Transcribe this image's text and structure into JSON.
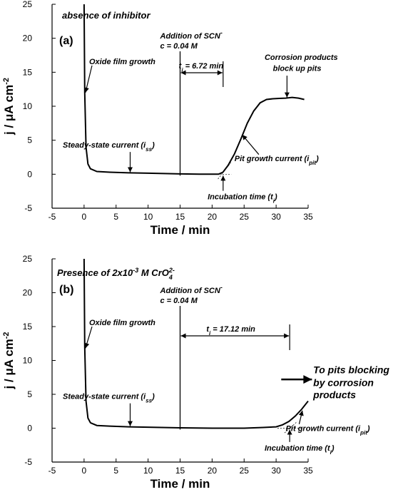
{
  "chart_data": [
    {
      "type": "line",
      "panel_label": "(a)",
      "header": "absence of inhibitor",
      "xlabel": "Time / min",
      "ylabel": "j / μA cm-2",
      "xlim": [
        -5,
        35
      ],
      "ylim": [
        -5,
        25
      ],
      "xticks": [
        "-5",
        "0",
        "5",
        "10",
        "15",
        "20",
        "25",
        "30",
        "35"
      ],
      "yticks": [
        "-5",
        "0",
        "5",
        "10",
        "15",
        "20",
        "25"
      ],
      "series": [
        {
          "x": [
            0,
            0.1,
            0.3,
            0.6,
            1,
            2,
            4,
            7,
            10,
            15,
            18,
            21,
            21.7,
            22.5,
            23.5,
            24.5,
            25.5,
            26.5,
            27.5,
            28.5,
            29.5,
            30.5,
            31.5,
            32.5,
            33.5,
            34.4
          ],
          "y": [
            25,
            12,
            4,
            1.5,
            0.8,
            0.4,
            0.3,
            0.2,
            0.15,
            0.05,
            0,
            0,
            0.3,
            1.3,
            3,
            5.2,
            7.5,
            9.3,
            10.5,
            11,
            11.1,
            11.15,
            11.2,
            11.3,
            11.2,
            11
          ]
        }
      ],
      "annotations": {
        "oxide": "Oxide film growth",
        "steady_main": "Steady-state current (i",
        "steady_sub": "ss",
        "steady_end": ")",
        "addition": "Addition of SCN",
        "addition_sup": "-",
        "conc": "c = 0.04 M",
        "ti_main": "t",
        "ti_sub": "i",
        "ti_val": " = 6.72 min",
        "corr1": "Corrosion products",
        "corr2": "block up pits",
        "pit_main": "Pit growth current (i",
        "pit_sub": "pit",
        "pit_end": ")",
        "incub_main": "Incubation time (t",
        "incub_sub": "i",
        "incub_end": ")"
      }
    },
    {
      "type": "line",
      "panel_label": "(b)",
      "header_main": "Presence of 2x10",
      "header_sup1": "-3",
      "header_mid": " M CrO",
      "header_sub": "4",
      "header_sup2": "2-",
      "xlabel": "Time / min",
      "ylabel": "j / μA cm-2",
      "xlim": [
        -5,
        35
      ],
      "ylim": [
        -5,
        25
      ],
      "xticks": [
        "-5",
        "0",
        "5",
        "10",
        "15",
        "20",
        "25",
        "30",
        "35"
      ],
      "yticks": [
        "-5",
        "0",
        "5",
        "10",
        "15",
        "20",
        "25"
      ],
      "series": [
        {
          "x": [
            0,
            0.1,
            0.3,
            0.6,
            1,
            2,
            4,
            7,
            10,
            15,
            20,
            25,
            28,
            30,
            31,
            32,
            33,
            34,
            35
          ],
          "y": [
            25,
            12,
            4,
            1.5,
            0.8,
            0.4,
            0.3,
            0.2,
            0.15,
            0.05,
            0,
            0,
            0.1,
            0.2,
            0.5,
            1,
            1.8,
            2.8,
            4
          ]
        }
      ],
      "annotations": {
        "oxide": "Oxide film growth",
        "steady_main": "Steady-state current (i",
        "steady_sub": "ss",
        "steady_end": ")",
        "addition": "Addition of SCN",
        "addition_sup": "-",
        "conc": "c = 0.04 M",
        "ti_main": "t",
        "ti_sub": "i",
        "ti_val": " = 17.12 min",
        "block1": "To pits blocking",
        "block2": "by corrosion",
        "block3": "products",
        "pit_main": "Pit growth current (i",
        "pit_sub": "pit",
        "pit_end": ")",
        "incub_main": "Incubation time (t",
        "incub_sub": "i",
        "incub_end": ")"
      }
    }
  ]
}
